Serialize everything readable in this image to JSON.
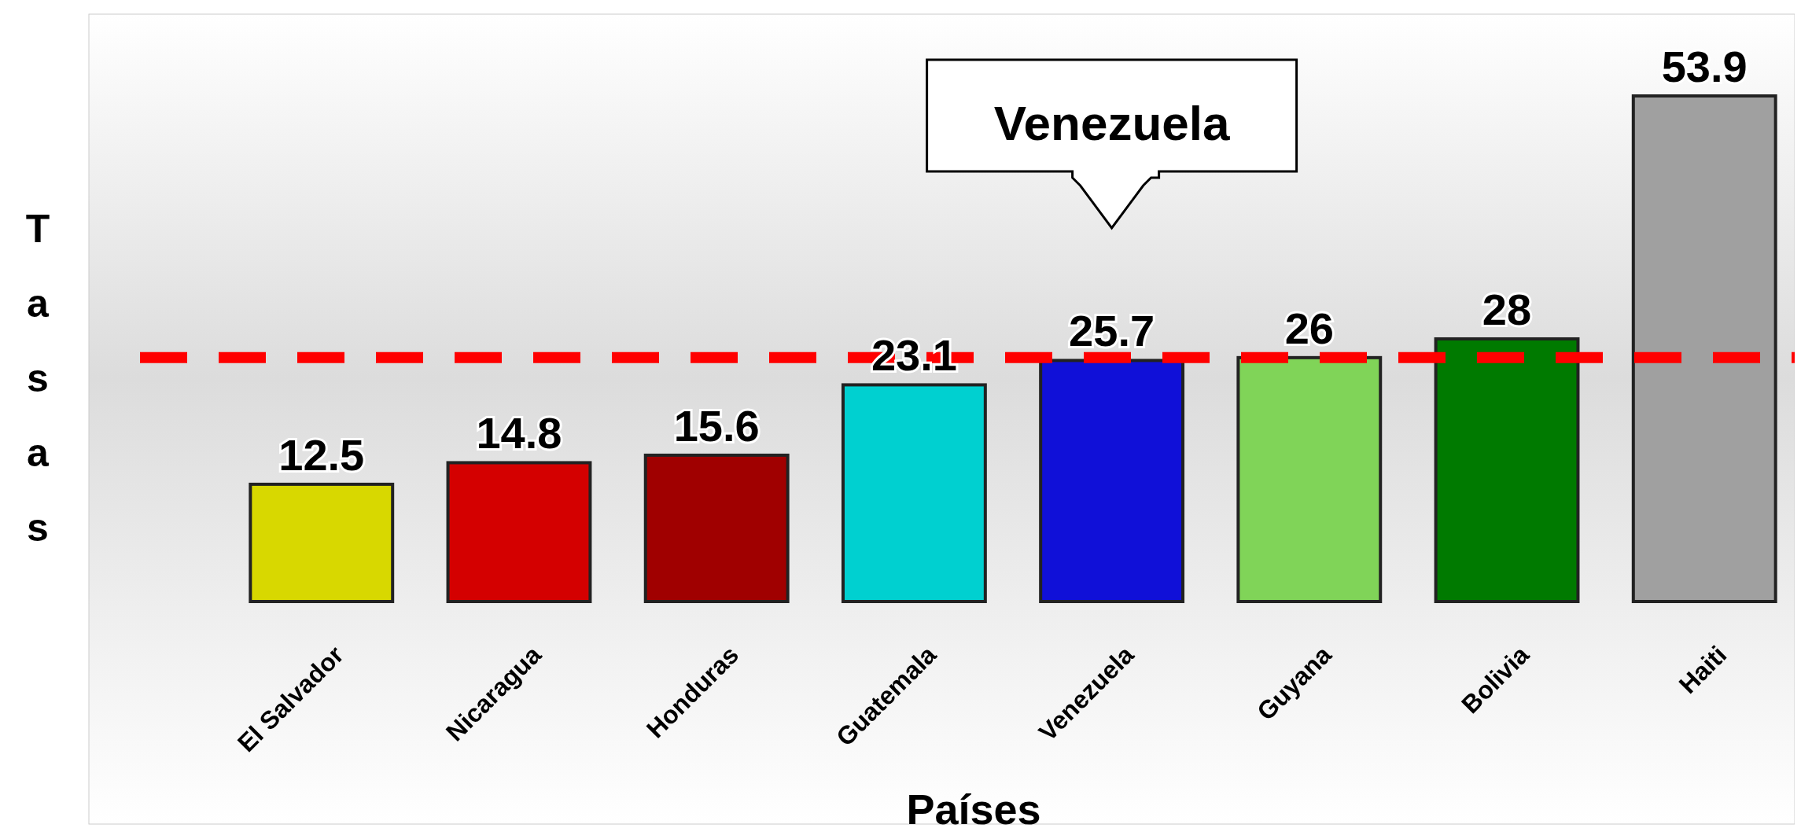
{
  "chart_data": {
    "type": "bar",
    "xlabel": "Países",
    "ylabel": "Tasas",
    "categories": [
      "El Salvador",
      "Nicaragua",
      "Honduras",
      "Guatemala",
      "Venezuela",
      "Guyana",
      "Bolivia",
      "Haiti"
    ],
    "values": [
      12.5,
      14.8,
      15.6,
      23.1,
      25.7,
      26,
      28,
      53.9
    ],
    "colors": [
      "#d8d800",
      "#d40000",
      "#a00000",
      "#00d0d0",
      "#1010d8",
      "#80d458",
      "#007a00",
      "#a0a0a0"
    ],
    "data_labels": true,
    "ref_lines": [
      {
        "axis": "y",
        "value": 26,
        "color": "#ff0000",
        "line_style": "dashed"
      }
    ],
    "annotations": [
      "Venezuela"
    ]
  }
}
